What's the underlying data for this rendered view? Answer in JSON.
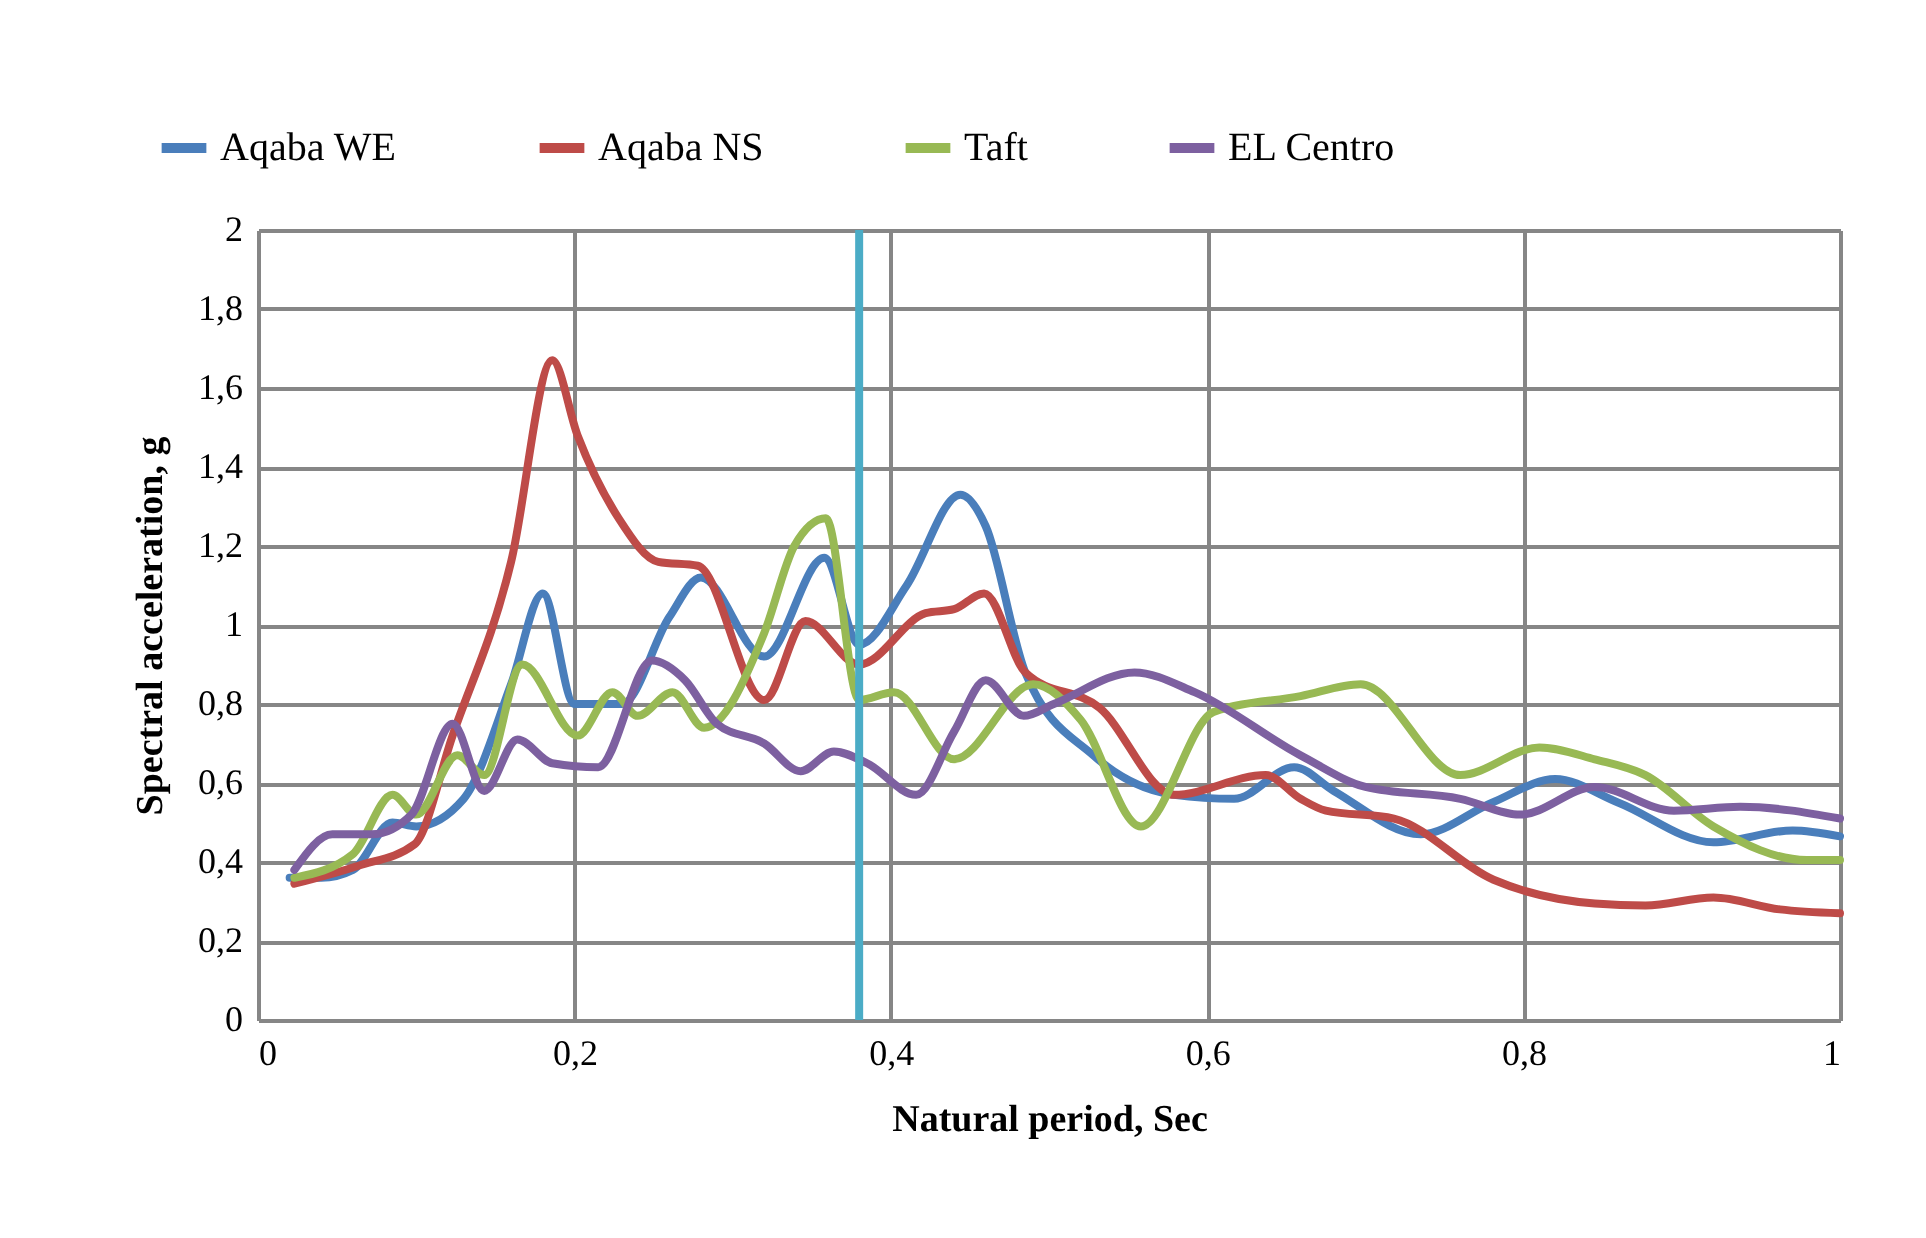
{
  "chart_data": {
    "type": "line",
    "xlabel": "Natural period, Sec",
    "ylabel": "Spectral acceleration, g",
    "xlim": [
      0,
      1
    ],
    "xticks": [
      0,
      {
        "value": 0.2,
        "label": "0,2"
      },
      {
        "value": 0.4,
        "label": "0,4"
      },
      {
        "value": 0.6,
        "label": "0,6"
      },
      {
        "value": 0.8,
        "label": "0,8"
      },
      1
    ],
    "ylim": [
      0,
      2
    ],
    "yticks": [
      0,
      {
        "value": 0.2,
        "label": "0,2"
      },
      {
        "value": 0.4,
        "label": "0,4"
      },
      {
        "value": 0.6,
        "label": "0,6"
      },
      {
        "value": 0.8,
        "label": "0,8"
      },
      1,
      {
        "value": 1.2,
        "label": "1,2"
      },
      {
        "value": 1.4,
        "label": "1,4"
      },
      {
        "value": 1.6,
        "label": "1,6"
      },
      {
        "value": 1.8,
        "label": "1,8"
      },
      2
    ],
    "grid": true,
    "legend": "top",
    "line_style": "solid",
    "ref_lines": [
      {
        "axis": "x",
        "value": 0.38,
        "color": "#4bacc6"
      }
    ],
    "series": [
      {
        "name": "Aqaba WE",
        "color": "#4a7ebb",
        "x": [
          0.02,
          0.04,
          0.06,
          0.085,
          0.1,
          0.13,
          0.16,
          0.18,
          0.2,
          0.23,
          0.26,
          0.28,
          0.32,
          0.358,
          0.38,
          0.41,
          0.444,
          0.46,
          0.485,
          0.528,
          0.579,
          0.617,
          0.655,
          0.68,
          0.735,
          0.78,
          0.82,
          0.86,
          0.92,
          0.97,
          1.0
        ],
        "values": [
          0.36,
          0.36,
          0.38,
          0.5,
          0.49,
          0.56,
          0.85,
          1.08,
          0.8,
          0.8,
          1.02,
          1.12,
          0.92,
          1.17,
          0.95,
          1.1,
          1.33,
          1.25,
          0.88,
          0.67,
          0.57,
          0.56,
          0.64,
          0.58,
          0.47,
          0.55,
          0.61,
          0.55,
          0.45,
          0.48,
          0.465
        ]
      },
      {
        "name": "Aqaba NS",
        "color": "#be4b48",
        "x": [
          0.023,
          0.063,
          0.099,
          0.123,
          0.16,
          0.186,
          0.202,
          0.228,
          0.253,
          0.278,
          0.32,
          0.346,
          0.38,
          0.422,
          0.44,
          0.459,
          0.485,
          0.532,
          0.579,
          0.637,
          0.659,
          0.675,
          0.718,
          0.781,
          0.845,
          0.877,
          0.92,
          0.962,
          1.0
        ],
        "values": [
          0.345,
          0.39,
          0.445,
          0.72,
          1.16,
          1.67,
          1.48,
          1.27,
          1.16,
          1.15,
          0.81,
          1.01,
          0.9,
          1.03,
          1.04,
          1.08,
          0.88,
          0.79,
          0.57,
          0.62,
          0.56,
          0.53,
          0.51,
          0.355,
          0.295,
          0.29,
          0.31,
          0.28,
          0.27
        ]
      },
      {
        "name": "Taft",
        "color": "#98b954",
        "x": [
          0.023,
          0.06,
          0.085,
          0.1,
          0.126,
          0.143,
          0.167,
          0.202,
          0.224,
          0.24,
          0.262,
          0.282,
          0.32,
          0.339,
          0.359,
          0.38,
          0.402,
          0.44,
          0.49,
          0.52,
          0.558,
          0.604,
          0.659,
          0.697,
          0.76,
          0.81,
          0.845,
          0.877,
          0.92,
          0.979,
          1.0
        ],
        "values": [
          0.36,
          0.42,
          0.57,
          0.52,
          0.67,
          0.62,
          0.9,
          0.72,
          0.83,
          0.77,
          0.83,
          0.74,
          0.98,
          1.2,
          1.27,
          0.81,
          0.83,
          0.66,
          0.85,
          0.76,
          0.49,
          0.78,
          0.82,
          0.85,
          0.62,
          0.69,
          0.66,
          0.62,
          0.49,
          0.405,
          0.405
        ]
      },
      {
        "name": "EL Centro",
        "color": "#7d60a0",
        "x": [
          0.023,
          0.047,
          0.072,
          0.097,
          0.123,
          0.143,
          0.164,
          0.186,
          0.215,
          0.249,
          0.27,
          0.29,
          0.32,
          0.343,
          0.364,
          0.385,
          0.416,
          0.44,
          0.46,
          0.484,
          0.503,
          0.554,
          0.592,
          0.659,
          0.7,
          0.76,
          0.798,
          0.845,
          0.895,
          0.937,
          1.0
        ],
        "values": [
          0.38,
          0.47,
          0.47,
          0.52,
          0.75,
          0.58,
          0.71,
          0.65,
          0.64,
          0.91,
          0.86,
          0.75,
          0.7,
          0.63,
          0.68,
          0.65,
          0.57,
          0.73,
          0.86,
          0.77,
          0.8,
          0.88,
          0.83,
          0.67,
          0.59,
          0.56,
          0.52,
          0.59,
          0.53,
          0.54,
          0.51
        ]
      }
    ]
  }
}
